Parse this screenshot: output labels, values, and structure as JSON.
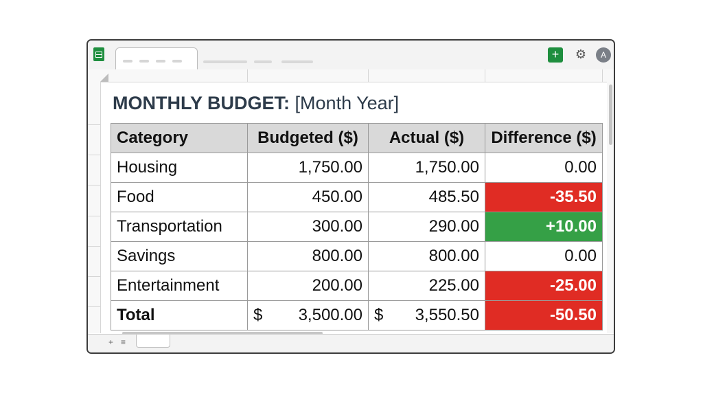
{
  "window": {
    "title_prefix": "MONTHLY BUDGET:",
    "title_suffix": "[Month Year]",
    "add_icon": "plus-icon",
    "settings_icon": "gear-icon",
    "avatar_letter": "A"
  },
  "colors": {
    "accent": "#1e8e3e",
    "negative": "#e02c24",
    "positive": "#35a046",
    "header_bg": "#d9d9d9"
  },
  "table": {
    "headers": [
      "Category",
      "Budgeted ($)",
      "Actual ($)",
      "Difference ($)"
    ],
    "rows": [
      {
        "category": "Housing",
        "budgeted": "1,750.00",
        "actual": "1,750.00",
        "difference": "0.00",
        "status": "neutral"
      },
      {
        "category": "Food",
        "budgeted": "450.00",
        "actual": "485.50",
        "difference": "-35.50",
        "status": "negative"
      },
      {
        "category": "Transportation",
        "budgeted": "300.00",
        "actual": "290.00",
        "difference": "+10.00",
        "status": "positive"
      },
      {
        "category": "Savings",
        "budgeted": "800.00",
        "actual": "800.00",
        "difference": "0.00",
        "status": "neutral"
      },
      {
        "category": "Entertainment",
        "budgeted": "200.00",
        "actual": "225.00",
        "difference": "-25.00",
        "status": "negative"
      }
    ],
    "total": {
      "label": "Total",
      "currency": "$",
      "budgeted": "3,500.00",
      "actual": "3,550.50",
      "difference": "-50.50",
      "status": "negative"
    }
  },
  "footer": {
    "add_sheet_icon": "plus-icon",
    "sheet_list_icon": "menu-icon"
  }
}
